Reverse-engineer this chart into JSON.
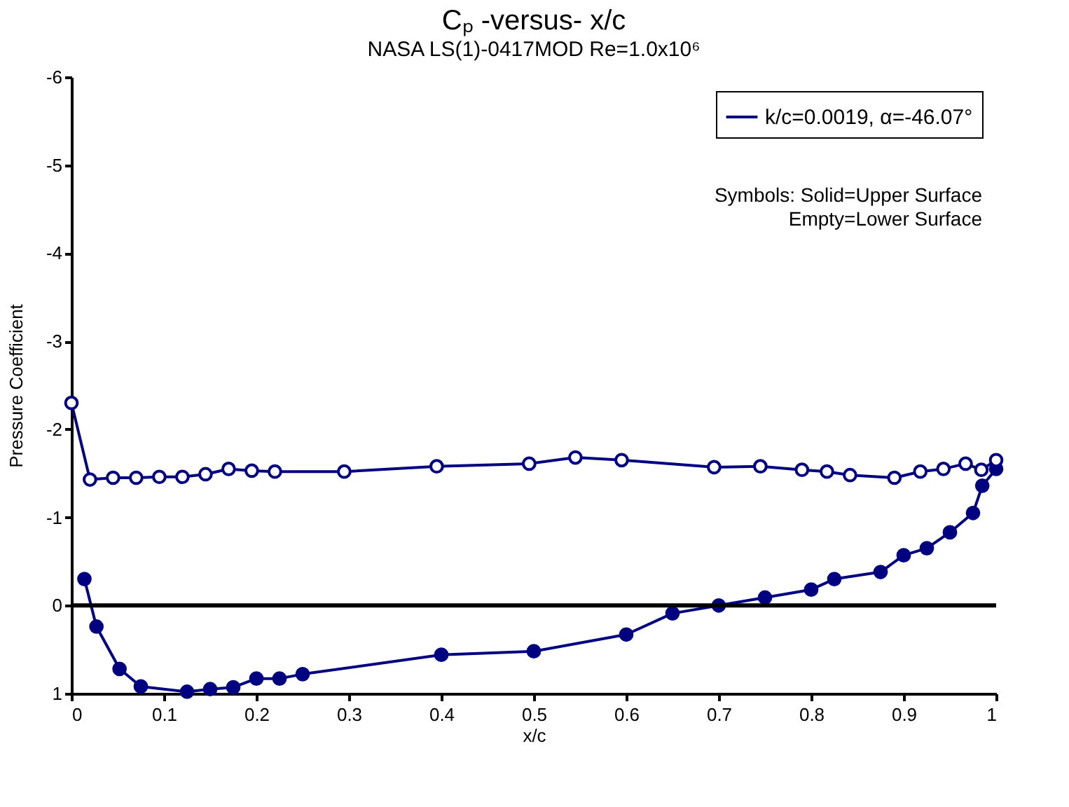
{
  "chart_data": {
    "type": "line",
    "title": "Cₚ -versus- x/c",
    "subtitle": "NASA LS(1)-0417MOD   Re=1.0x10⁶",
    "xlabel": "x/c",
    "ylabel": "Pressure Coefficient",
    "xlim": [
      0,
      1
    ],
    "ylim": [
      1,
      -6
    ],
    "xticks": [
      0,
      0.1,
      0.2,
      0.3,
      0.4,
      0.5,
      0.6,
      0.7,
      0.8,
      0.9,
      1
    ],
    "yticks": [
      1,
      0,
      -1,
      -2,
      -3,
      -4,
      -5,
      -6
    ],
    "marker": "circle",
    "line_style": "solid",
    "grid": false,
    "legend": "top right",
    "ref_lines": [
      {
        "axis": "y",
        "value": 0,
        "color": "#000000"
      }
    ],
    "annotations": [
      "Symbols:  Solid=Upper Surface",
      "Empty=Lower Surface"
    ],
    "series": [
      {
        "name": "k/c=0.0019, α=-46.07°",
        "color": "#000080",
        "x": [
          0.014,
          0.027,
          0.052,
          0.075,
          0.125,
          0.15,
          0.175,
          0.2,
          0.225,
          0.25,
          0.4,
          0.5,
          0.6,
          0.65,
          0.7,
          0.75,
          0.8,
          0.825,
          0.875,
          0.9,
          0.925,
          0.95,
          0.975,
          0.985,
          1.0
        ],
        "values": [
          -0.3,
          0.24,
          0.72,
          0.92,
          0.98,
          0.95,
          0.93,
          0.83,
          0.83,
          0.78,
          0.56,
          0.52,
          0.33,
          0.09,
          0.0,
          -0.09,
          -0.18,
          -0.3,
          -0.38,
          -0.57,
          -0.65,
          -0.83,
          -1.05,
          -1.36,
          -1.55
        ]
      },
      {
        "color": "#000080",
        "x": [
          0,
          0.02,
          0.045,
          0.07,
          0.095,
          0.12,
          0.145,
          0.17,
          0.195,
          0.22,
          0.295,
          0.395,
          0.495,
          0.545,
          0.595,
          0.695,
          0.745,
          0.79,
          0.817,
          0.842,
          0.89,
          0.918,
          0.943,
          0.967,
          0.984,
          1.0
        ],
        "values": [
          -2.3,
          -1.43,
          -1.45,
          -1.45,
          -1.46,
          -1.46,
          -1.49,
          -1.55,
          -1.53,
          -1.52,
          -1.52,
          -1.58,
          -1.61,
          -1.68,
          -1.65,
          -1.57,
          -1.58,
          -1.54,
          -1.52,
          -1.48,
          -1.45,
          -1.52,
          -1.55,
          -1.61,
          -1.54,
          -1.65
        ]
      }
    ]
  }
}
